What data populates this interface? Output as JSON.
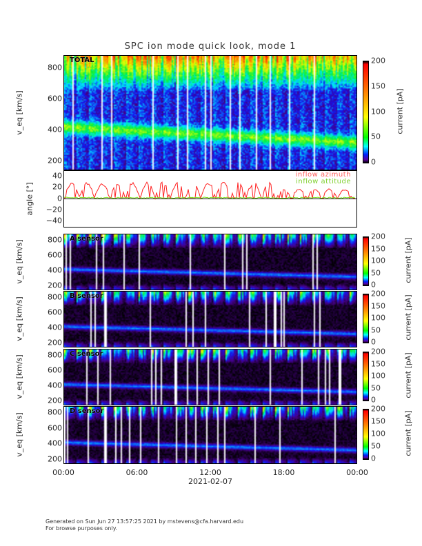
{
  "title": "SPC ion mode quick look, mode 1",
  "footer": {
    "line1": "Generated on Sun Jun 27 13:57:25 2021 by mstevens@cfa.harvard.edu",
    "line2": "For browse purposes only."
  },
  "chart_data": {
    "type": "heatmap",
    "xlabel": "2021-02-07",
    "xticks": [
      "00:00",
      "06:00",
      "12:00",
      "18:00",
      "00:00"
    ],
    "panels": [
      {
        "label": "TOTAL",
        "ylabel": "v_eq [km/s]",
        "yticks": [
          "800",
          "600",
          "400",
          "200"
        ],
        "colorbar": {
          "label": "current [pA]",
          "ticks": [
            "200",
            "150",
            "100",
            "50",
            "0"
          ],
          "range": [
            0,
            200
          ]
        }
      },
      {
        "label": "A sensor",
        "ylabel": "v_eq [km/s]",
        "yticks": [
          "800",
          "600",
          "400",
          "200"
        ],
        "colorbar": {
          "label": "current [pA]",
          "ticks": [
            "200",
            "150",
            "100",
            "50",
            "0"
          ],
          "range": [
            0,
            200
          ]
        }
      },
      {
        "label": "B sensor",
        "ylabel": "v_eq [km/s]",
        "yticks": [
          "800",
          "600",
          "400",
          "200"
        ],
        "colorbar": {
          "label": "current [pA]",
          "ticks": [
            "200",
            "150",
            "100",
            "50",
            "0"
          ],
          "range": [
            0,
            200
          ]
        }
      },
      {
        "label": "C sensor",
        "ylabel": "v_eq [km/s]",
        "yticks": [
          "800",
          "600",
          "400",
          "200"
        ],
        "colorbar": {
          "label": "current [pA]",
          "ticks": [
            "200",
            "150",
            "100",
            "50",
            "0"
          ],
          "range": [
            0,
            200
          ]
        }
      },
      {
        "label": "D sensor",
        "ylabel": "v_eq [km/s]",
        "yticks": [
          "800",
          "600",
          "400",
          "200"
        ],
        "colorbar": {
          "label": "current [pA]",
          "ticks": [
            "200",
            "150",
            "100",
            "50",
            "0"
          ],
          "range": [
            0,
            200
          ]
        }
      }
    ],
    "angle_panel": {
      "ylabel": "angle [°]",
      "yticks": [
        "40",
        "20",
        "0",
        "−20",
        "−40"
      ],
      "ylim": [
        -45,
        45
      ],
      "series": [
        {
          "name": "inflow azimuth",
          "color": "#ff2020"
        },
        {
          "name": "inflow attitude",
          "color": "#80e020"
        }
      ]
    },
    "yrange": [
      140,
      880
    ]
  }
}
